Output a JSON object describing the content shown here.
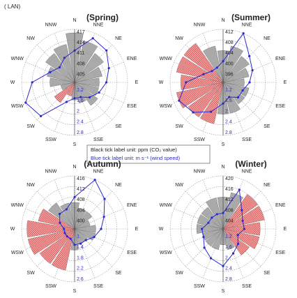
{
  "header": "( LAN)",
  "note": [
    "Black tick label unit: ppm (CO₂ value)",
    "Blue tick label unit: m s⁻¹ (wind speed)"
  ],
  "chart_data": [
    {
      "type": "rose",
      "title": "(Spring)",
      "categories": [
        "N",
        "NNE",
        "NE",
        "ENE",
        "E",
        "ESE",
        "SE",
        "SSE",
        "S",
        "SSW",
        "SW",
        "WSW",
        "W",
        "WNW",
        "NW",
        "NNW"
      ],
      "series": [
        {
          "values": [
            416,
            414,
            412,
            410,
            409,
            409,
            410,
            408,
            407,
            406,
            409,
            406,
            409,
            410,
            412,
            413
          ],
          "colors": [
            "#aaaaaa",
            "#aaaaaa",
            "#aaaaaa",
            "#aaaaaa",
            "#aaaaaa",
            "#aaaaaa",
            "#aaaaaa",
            "#aaaaaa",
            "#aaaaaa",
            "#f2a0a0",
            "#f2a0a0",
            "#aaaaaa",
            "#aaaaaa",
            "#aaaaaa",
            "#aaaaaa",
            "#aaaaaa"
          ]
        },
        {
          "axis": "y2",
          "color": "#2a2ad0",
          "values": [
            2.0,
            2.6,
            2.5,
            2.2,
            2.0,
            1.8,
            1.6,
            1.4,
            1.4,
            1.6,
            2.6,
            2.8,
            2.4,
            1.8,
            1.6,
            1.8
          ]
        }
      ],
      "ylim": [
        402,
        417
      ],
      "yticks": [
        405,
        408,
        411,
        414,
        417
      ],
      "y2lim": [
        0.8,
        2.8
      ],
      "y2ticks": [
        1.2,
        1.6,
        2.0,
        2.4,
        2.8
      ]
    },
    {
      "type": "rose",
      "title": "(Summer)",
      "categories": [
        "N",
        "NNE",
        "NE",
        "ENE",
        "E",
        "ESE",
        "SE",
        "SSE",
        "S",
        "SSW",
        "SW",
        "WSW",
        "W",
        "WNW",
        "NW",
        "NNW"
      ],
      "series": [
        {
          "values": [
            404,
            406,
            404,
            402,
            400,
            402,
            402,
            404,
            404,
            408,
            408,
            410,
            408,
            410,
            410,
            406
          ],
          "colors": [
            "#aaaaaa",
            "#aaaaaa",
            "#aaaaaa",
            "#aaaaaa",
            "#aaaaaa",
            "#aaaaaa",
            "#aaaaaa",
            "#aaaaaa",
            "#aaaaaa",
            "#f2a0a0",
            "#f2a0a0",
            "#f2a0a0",
            "#f2a0a0",
            "#f2a0a0",
            "#f2a0a0",
            "#aaaaaa"
          ]
        },
        {
          "axis": "y2",
          "color": "#2a2ad0",
          "values": [
            1.6,
            2.8,
            2.2,
            2.0,
            1.8,
            1.6,
            1.6,
            1.4,
            1.6,
            2.0,
            2.4,
            2.6,
            2.2,
            1.6,
            1.4,
            1.4
          ]
        }
      ],
      "ylim": [
        392,
        412
      ],
      "yticks": [
        396,
        400,
        404,
        408,
        412
      ],
      "y2lim": [
        0.8,
        2.8
      ],
      "y2ticks": [
        1.2,
        1.6,
        2.0,
        2.4,
        2.8
      ]
    },
    {
      "type": "rose",
      "title": "(Autumn)",
      "categories": [
        "N",
        "NNE",
        "NE",
        "ENE",
        "E",
        "ESE",
        "SE",
        "SSE",
        "S",
        "SSW",
        "SW",
        "WSW",
        "W",
        "WNW",
        "NW",
        "NNW"
      ],
      "series": [
        {
          "values": [
            406,
            404,
            404,
            402,
            404,
            404,
            402,
            402,
            404,
            412,
            412,
            414,
            414,
            410,
            408,
            406
          ],
          "colors": [
            "#aaaaaa",
            "#aaaaaa",
            "#aaaaaa",
            "#aaaaaa",
            "#aaaaaa",
            "#aaaaaa",
            "#aaaaaa",
            "#aaaaaa",
            "#aaaaaa",
            "#f2a0a0",
            "#f2a0a0",
            "#f2a0a0",
            "#f2a0a0",
            "#f2a0a0",
            "#aaaaaa",
            "#aaaaaa"
          ]
        },
        {
          "axis": "y2",
          "color": "#2a2ad0",
          "values": [
            1.8,
            2.6,
            2.2,
            1.8,
            1.6,
            1.4,
            1.2,
            1.2,
            1.2,
            1.0,
            1.0,
            1.0,
            1.0,
            1.2,
            1.4,
            1.4
          ]
        }
      ],
      "ylim": [
        396,
        416
      ],
      "yticks": [
        400,
        404,
        408,
        412,
        416
      ],
      "y2lim": [
        0.6,
        2.6
      ],
      "y2ticks": [
        1.0,
        1.4,
        1.8,
        2.2,
        2.6
      ]
    },
    {
      "type": "rose",
      "title": "(Winter)",
      "categories": [
        "N",
        "NNE",
        "NE",
        "ENE",
        "E",
        "ESE",
        "SE",
        "SSE",
        "S",
        "SSW",
        "SW",
        "WSW",
        "W",
        "WNW",
        "NW",
        "NNW"
      ],
      "series": [
        {
          "values": [
            412,
            414,
            416,
            416,
            414,
            414,
            412,
            408,
            406,
            408,
            408,
            408,
            410,
            410,
            410,
            412
          ],
          "colors": [
            "#aaaaaa",
            "#aaaaaa",
            "#f2a0a0",
            "#f2a0a0",
            "#f2a0a0",
            "#f2a0a0",
            "#f2a0a0",
            "#aaaaaa",
            "#aaaaaa",
            "#aaaaaa",
            "#aaaaaa",
            "#aaaaaa",
            "#aaaaaa",
            "#aaaaaa",
            "#aaaaaa",
            "#aaaaaa"
          ]
        },
        {
          "axis": "y2",
          "color": "#2a2ad0",
          "values": [
            1.4,
            2.4,
            1.8,
            1.6,
            1.6,
            1.4,
            1.6,
            1.8,
            2.2,
            2.0,
            1.8,
            1.6,
            1.6,
            1.4,
            1.4,
            1.4
          ]
        }
      ],
      "ylim": [
        400,
        420
      ],
      "yticks": [
        404,
        408,
        412,
        416,
        420
      ],
      "y2lim": [
        0.8,
        2.8
      ],
      "y2ticks": [
        1.2,
        1.6,
        2.0,
        2.4,
        2.8
      ]
    }
  ]
}
